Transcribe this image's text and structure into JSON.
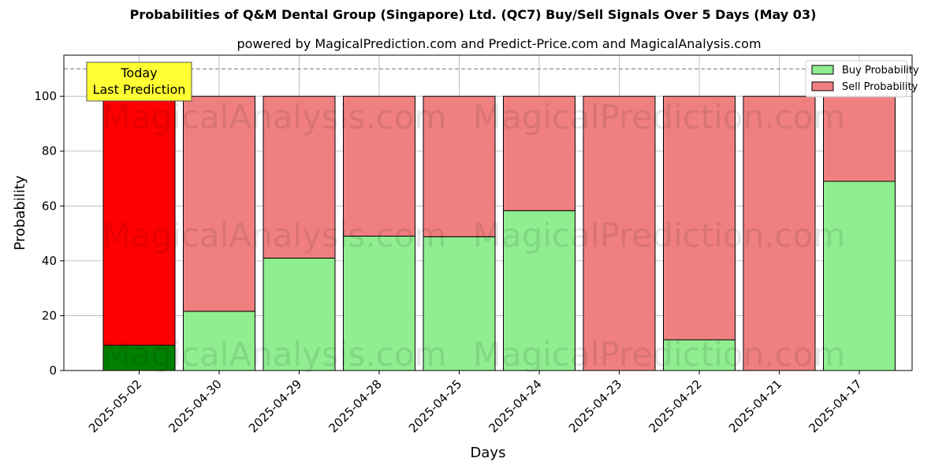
{
  "chart_data": {
    "type": "bar",
    "stacked": true,
    "title": "Probabilities of Q&M Dental Group (Singapore) Ltd. (QC7) Buy/Sell Signals Over 5 Days (May 03)",
    "subtitle": "powered by MagicalPrediction.com and Predict-Price.com and MagicalAnalysis.com",
    "xlabel": "Days",
    "ylabel": "Probability",
    "ylim": [
      0,
      115
    ],
    "yticks": [
      0,
      20,
      40,
      60,
      80,
      100
    ],
    "categories": [
      "2025-05-02",
      "2025-04-30",
      "2025-04-29",
      "2025-04-28",
      "2025-04-25",
      "2025-04-24",
      "2025-04-23",
      "2025-04-22",
      "2025-04-21",
      "2025-04-17"
    ],
    "series": [
      {
        "name": "Buy Probability",
        "color": "#90ee90",
        "highlight_color": "#008000",
        "values": [
          9.2,
          21.6,
          41.0,
          49.0,
          48.8,
          58.3,
          0.0,
          11.2,
          0.0,
          69.0
        ]
      },
      {
        "name": "Sell Probability",
        "color": "#f08080",
        "highlight_color": "#ff0000",
        "values": [
          90.8,
          78.4,
          59.0,
          51.0,
          51.2,
          41.7,
          100.0,
          88.8,
          100.0,
          31.0
        ]
      }
    ],
    "highlight_index": 0,
    "reference_line": 110,
    "grid": true,
    "legend_position": "top-right",
    "annotation": {
      "line1": "Today",
      "line2": "Last Prediction",
      "background": "#ffff33"
    },
    "watermarks": [
      "MagicalAnalysis.com",
      "MagicalPrediction.com"
    ]
  }
}
